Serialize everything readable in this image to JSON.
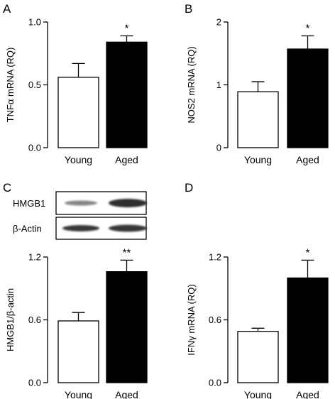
{
  "chart_data": [
    {
      "type": "bar",
      "panel": "A",
      "ylabel": "TNFα mRNA (RQ)",
      "categories": [
        "Young",
        "Aged"
      ],
      "values": [
        0.56,
        0.84
      ],
      "errors": [
        0.11,
        0.05
      ],
      "fills": [
        "#ffffff",
        "#000000"
      ],
      "ylim": [
        0,
        1.0
      ],
      "yticks": [
        0.0,
        0.5,
        1.0
      ],
      "ytick_labels": [
        "0.0",
        "0.5",
        "1.0"
      ],
      "annotations": [
        "",
        "*"
      ]
    },
    {
      "type": "bar",
      "panel": "B",
      "ylabel": "NOS2 mRNA (RQ)",
      "categories": [
        "Young",
        "Aged"
      ],
      "values": [
        0.89,
        1.57
      ],
      "errors": [
        0.16,
        0.21
      ],
      "fills": [
        "#ffffff",
        "#000000"
      ],
      "ylim": [
        0,
        2
      ],
      "yticks": [
        0,
        1,
        2
      ],
      "ytick_labels": [
        "0",
        "1",
        "2"
      ],
      "annotations": [
        "",
        "*"
      ]
    },
    {
      "type": "bar",
      "panel": "C",
      "ylabel": "HMGB1/β-actin",
      "categories": [
        "Young",
        "Aged"
      ],
      "values": [
        0.59,
        1.06
      ],
      "errors": [
        0.08,
        0.11
      ],
      "fills": [
        "#ffffff",
        "#000000"
      ],
      "ylim": [
        0,
        1.2
      ],
      "yticks": [
        0.0,
        0.6,
        1.2
      ],
      "ytick_labels": [
        "0.0",
        "0.6",
        "1.2"
      ],
      "annotations": [
        "",
        "**"
      ],
      "blot_labels": [
        "HMGB1",
        "β-Actin"
      ]
    },
    {
      "type": "bar",
      "panel": "D",
      "ylabel": "IFNγ mRNA (RQ)",
      "categories": [
        "Young",
        "Aged"
      ],
      "values": [
        0.49,
        1.0
      ],
      "errors": [
        0.03,
        0.17
      ],
      "fills": [
        "#ffffff",
        "#000000"
      ],
      "ylim": [
        0,
        1.2
      ],
      "yticks": [
        0.0,
        0.6,
        1.2
      ],
      "ytick_labels": [
        "0.0",
        "0.6",
        "1.2"
      ],
      "annotations": [
        "",
        "*"
      ]
    }
  ]
}
